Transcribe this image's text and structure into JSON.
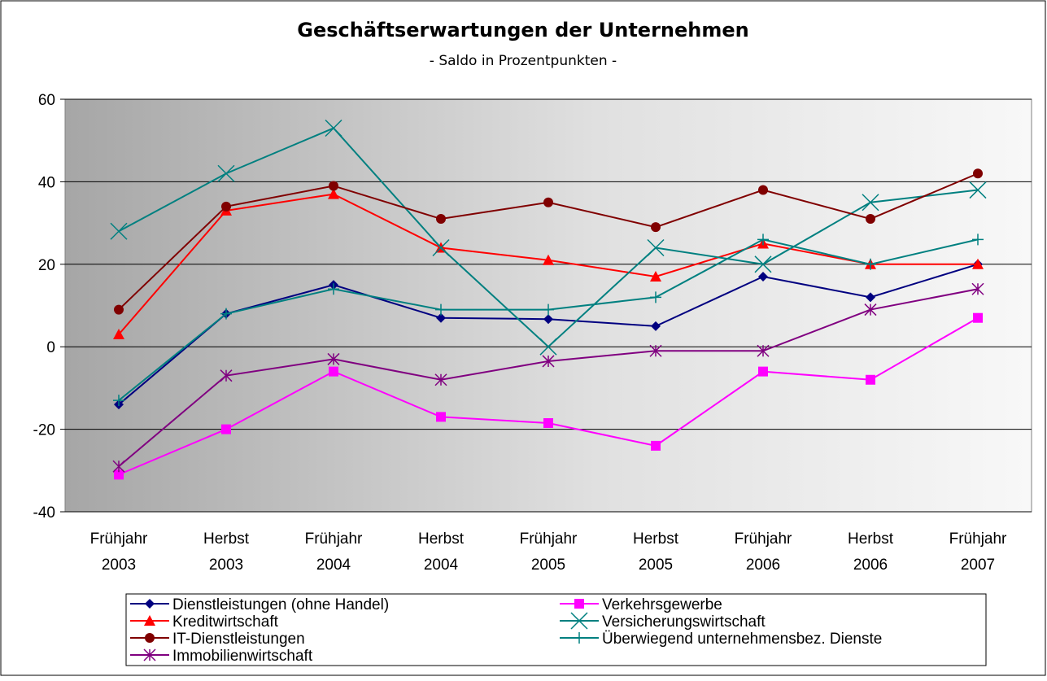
{
  "chart_data": {
    "type": "line",
    "title": "Geschäftserwartungen der Unternehmen",
    "subtitle": "- Saldo in Prozentpunkten -",
    "categories": [
      [
        "Frühjahr",
        "2003"
      ],
      [
        "Herbst",
        "2003"
      ],
      [
        "Frühjahr",
        "2004"
      ],
      [
        "Herbst",
        "2004"
      ],
      [
        "Frühjahr",
        "2005"
      ],
      [
        "Herbst",
        "2005"
      ],
      [
        "Frühjahr",
        "2006"
      ],
      [
        "Herbst",
        "2006"
      ],
      [
        "Frühjahr",
        "2007"
      ]
    ],
    "ylim": [
      -40,
      60
    ],
    "yticks": [
      -40,
      -20,
      0,
      20,
      40,
      60
    ],
    "grid": true,
    "series": [
      {
        "name": "Dienstleistungen (ohne Handel)",
        "color": "#000080",
        "marker": "diamond",
        "values": [
          -14,
          8,
          15,
          7,
          6.7,
          5,
          17,
          12,
          20
        ]
      },
      {
        "name": "Verkehrsgewerbe",
        "color": "#ff00ff",
        "marker": "square",
        "values": [
          -31,
          -20,
          -6,
          -17,
          -18.5,
          -24,
          -6,
          -8,
          7
        ]
      },
      {
        "name": "Kreditwirtschaft",
        "color": "#ff0000",
        "marker": "triangle",
        "values": [
          3,
          33,
          37,
          24,
          21,
          17,
          25,
          20,
          20
        ]
      },
      {
        "name": "Versicherungswirtschaft",
        "color": "#008080",
        "marker": "x",
        "values": [
          28,
          42,
          53,
          24,
          0,
          24,
          20,
          35,
          38
        ]
      },
      {
        "name": "IT-Dienstleistungen",
        "color": "#800000",
        "marker": "circle",
        "values": [
          9,
          34,
          39,
          31,
          35,
          29,
          38,
          31,
          42
        ]
      },
      {
        "name": "Überwiegend unternehmensbez. Dienste",
        "color": "#008080",
        "marker": "plus",
        "values": [
          -13,
          8,
          14,
          9,
          9,
          12,
          26,
          20,
          26
        ]
      },
      {
        "name": "Immobilienwirtschaft",
        "color": "#800080",
        "marker": "star",
        "values": [
          -29,
          -7,
          -3,
          -8,
          -3.5,
          -1,
          -1,
          9,
          14
        ]
      }
    ]
  }
}
